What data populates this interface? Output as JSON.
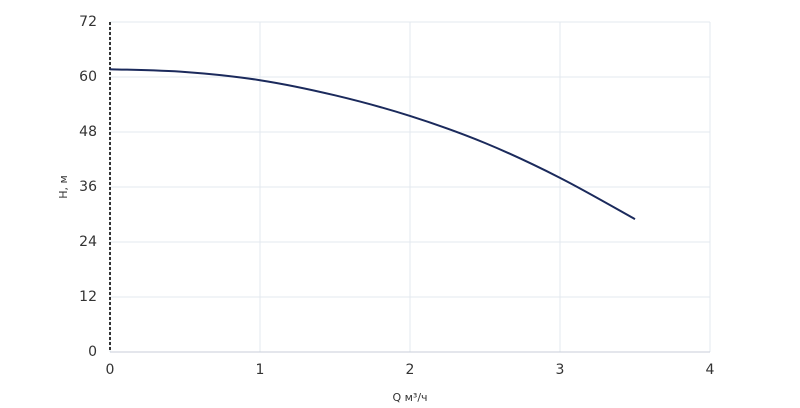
{
  "chart_data": {
    "type": "line",
    "x_label": "Q м³/ч",
    "y_label": "H, м",
    "x": [
      0,
      0.5,
      1,
      1.5,
      2,
      2.5,
      3,
      3.5
    ],
    "values": [
      61.7,
      61.1,
      59.3,
      56,
      51.5,
      45.6,
      38,
      29
    ],
    "color": "#1b2a5c",
    "xlim": [
      0,
      4
    ],
    "xticks": [
      0,
      1,
      2,
      3,
      4
    ],
    "ylim": [
      0,
      72
    ],
    "yticks": [
      0,
      12,
      24,
      36,
      48,
      60,
      72
    ],
    "grid": true
  }
}
